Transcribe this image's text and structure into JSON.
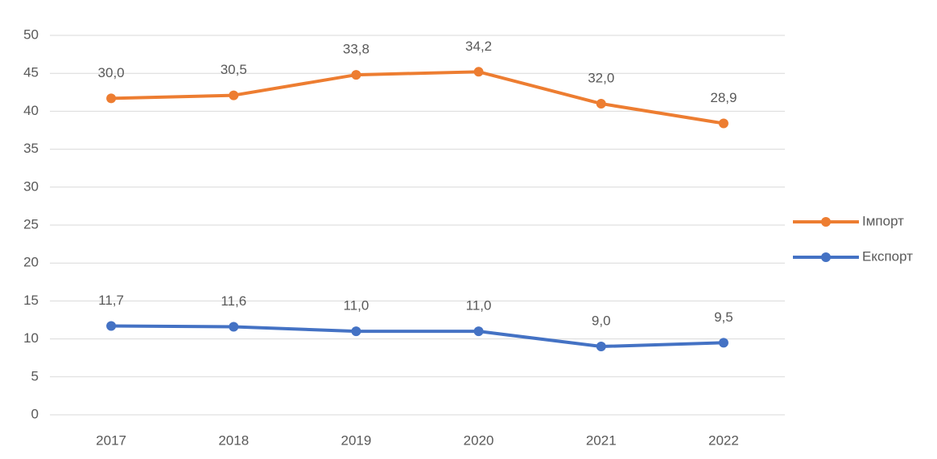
{
  "chart_data": {
    "type": "line",
    "stacked": true,
    "categories": [
      "2017",
      "2018",
      "2019",
      "2020",
      "2021",
      "2022"
    ],
    "series": [
      {
        "name": "Імпорт",
        "color": "#ed7d31",
        "values": [
          30.0,
          30.5,
          33.8,
          34.2,
          32.0,
          28.9
        ],
        "value_labels": [
          "30,0",
          "30,5",
          "33,8",
          "34,2",
          "32,0",
          "28,9"
        ]
      },
      {
        "name": "Експорт",
        "color": "#4472c4",
        "values": [
          11.7,
          11.6,
          11.0,
          11.0,
          9.0,
          9.5
        ],
        "value_labels": [
          "11,7",
          "11,6",
          "11,0",
          "11,0",
          "9,0",
          "9,5"
        ]
      }
    ],
    "ylim": [
      0,
      50
    ],
    "yticks": [
      0,
      5,
      10,
      15,
      20,
      25,
      30,
      35,
      40,
      45,
      50
    ],
    "grid": true,
    "legend": "right"
  }
}
